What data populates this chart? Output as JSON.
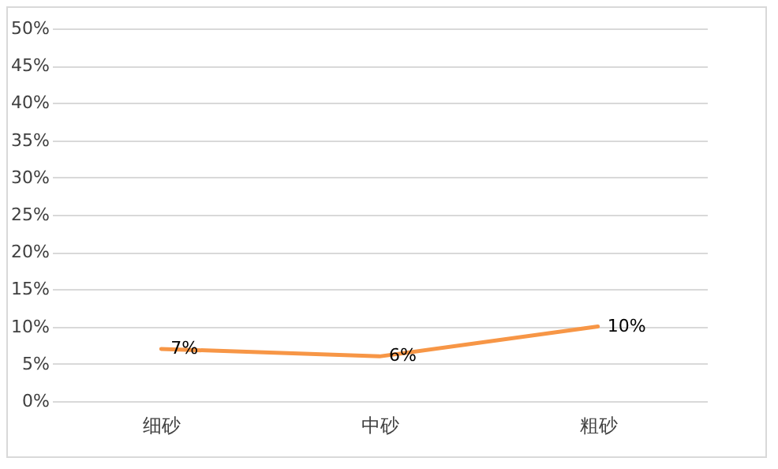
{
  "chart_data": {
    "type": "line",
    "categories": [
      "细砂",
      "中砂",
      "粗砂"
    ],
    "series": [
      {
        "color": "#f79646",
        "values": [
          7,
          6,
          10
        ],
        "value_labels": [
          "7%",
          "6%",
          "10%"
        ]
      }
    ],
    "ylim": [
      0,
      50
    ],
    "yticks": [
      {
        "value": 0,
        "label": "0%"
      },
      {
        "value": 5,
        "label": "5%"
      },
      {
        "value": 10,
        "label": "10%"
      },
      {
        "value": 15,
        "label": "15%"
      },
      {
        "value": 20,
        "label": "20%"
      },
      {
        "value": 25,
        "label": "25%"
      },
      {
        "value": 30,
        "label": "30%"
      },
      {
        "value": 35,
        "label": "35%"
      },
      {
        "value": 40,
        "label": "40%"
      },
      {
        "value": 45,
        "label": "45%"
      },
      {
        "value": 50,
        "label": "50%"
      }
    ],
    "grid": "y",
    "marker": "none",
    "line_style": "solid"
  }
}
